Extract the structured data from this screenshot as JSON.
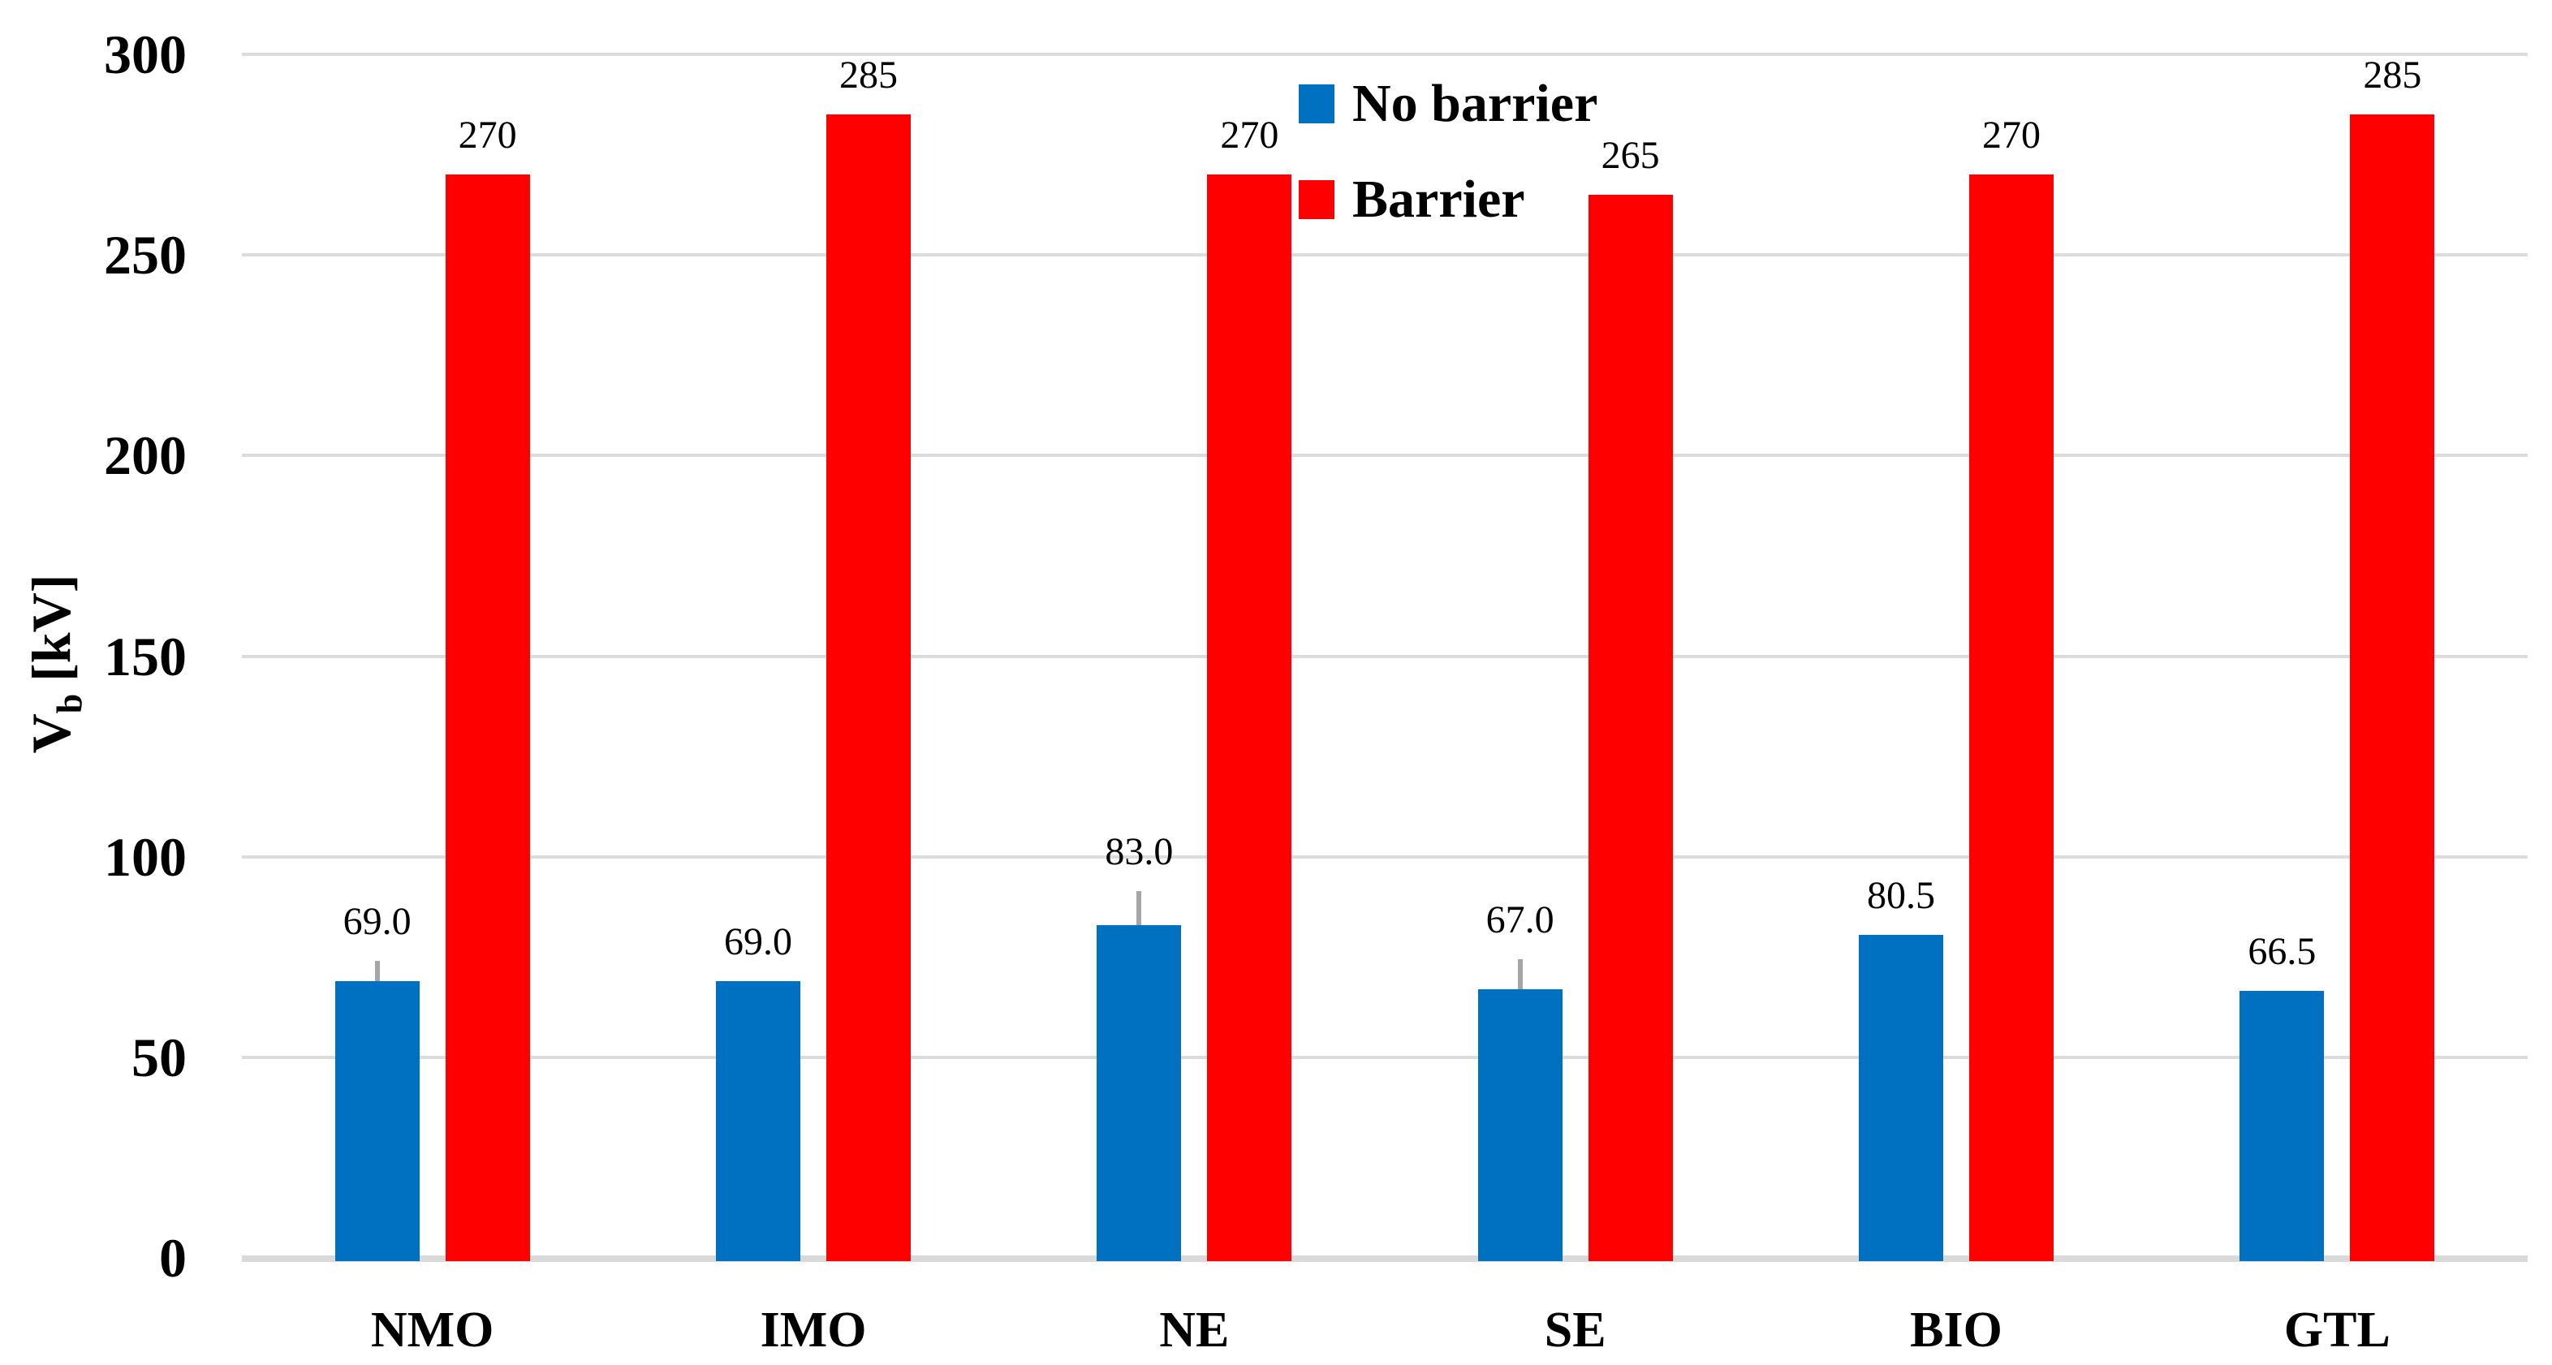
{
  "chart_data": {
    "type": "bar",
    "title": "",
    "xlabel": "",
    "ylabel_parts": {
      "main": "V",
      "sub": "b",
      "unit": "[kV]"
    },
    "ylabel_text": "Vb [kV]",
    "ylim": [
      0,
      300
    ],
    "yticks": [
      "0",
      "50",
      "100",
      "150",
      "200",
      "250",
      "300"
    ],
    "ytick_values": [
      0,
      50,
      100,
      150,
      200,
      250,
      300
    ],
    "grid": true,
    "legend_position": "top-center",
    "categories": [
      "NMO",
      "IMO",
      "NE",
      "SE",
      "BIO",
      "GTL"
    ],
    "series": [
      {
        "name": "No barrier",
        "color": "#0070C0",
        "values": [
          69.0,
          69.0,
          83.0,
          67.0,
          80.5,
          66.5
        ],
        "labels": [
          "69.0",
          "69.0",
          "83.0",
          "67.0",
          "80.5",
          "66.5"
        ],
        "error_plus": [
          5,
          0,
          8.5,
          7.5,
          0,
          0
        ]
      },
      {
        "name": "Barrier",
        "color": "#FF0000",
        "values": [
          270,
          285,
          270,
          265,
          270,
          285
        ],
        "labels": [
          "270",
          "285",
          "270",
          "265",
          "270",
          "285"
        ],
        "error_plus": [
          0,
          0,
          0,
          0,
          0,
          0
        ]
      }
    ],
    "colors": {
      "gridline": "#DCDCDC",
      "axis_line": "#D9D9D9",
      "error_bar": "#A6A6A6",
      "text": "#000000",
      "background": "#FFFFFF"
    }
  }
}
